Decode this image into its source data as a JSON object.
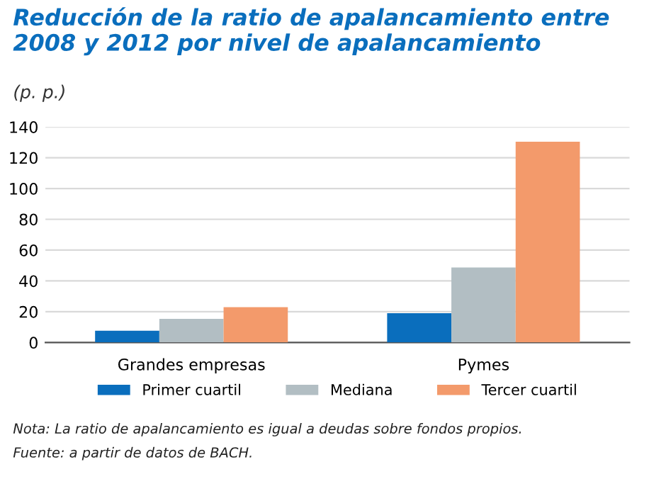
{
  "chart_data": {
    "type": "bar",
    "title": "Reducción de la ratio de apalancamiento entre 2008 y 2012 por nivel de apalancamiento",
    "ylabel": "(p. p.)",
    "categories": [
      "Grandes empresas",
      "Pymes"
    ],
    "series": [
      {
        "name": "Primer cuartil",
        "color": "#0a6ebd",
        "values": [
          7.6,
          19
        ]
      },
      {
        "name": "Mediana",
        "color": "#b2bec3",
        "values": [
          15.3,
          48.7
        ]
      },
      {
        "name": "Tercer cuartil",
        "color": "#f39a6b",
        "values": [
          22.9,
          130.4
        ]
      }
    ],
    "ylim": [
      0,
      140
    ],
    "yticks": [
      0,
      20,
      40,
      60,
      80,
      100,
      120,
      140
    ],
    "grid": "y",
    "legend": "bottom",
    "annotations": [
      "Nota: La ratio de apalancamiento es igual a deudas sobre fondos propios.",
      "Fuente: a partir de datos de BACH."
    ]
  }
}
